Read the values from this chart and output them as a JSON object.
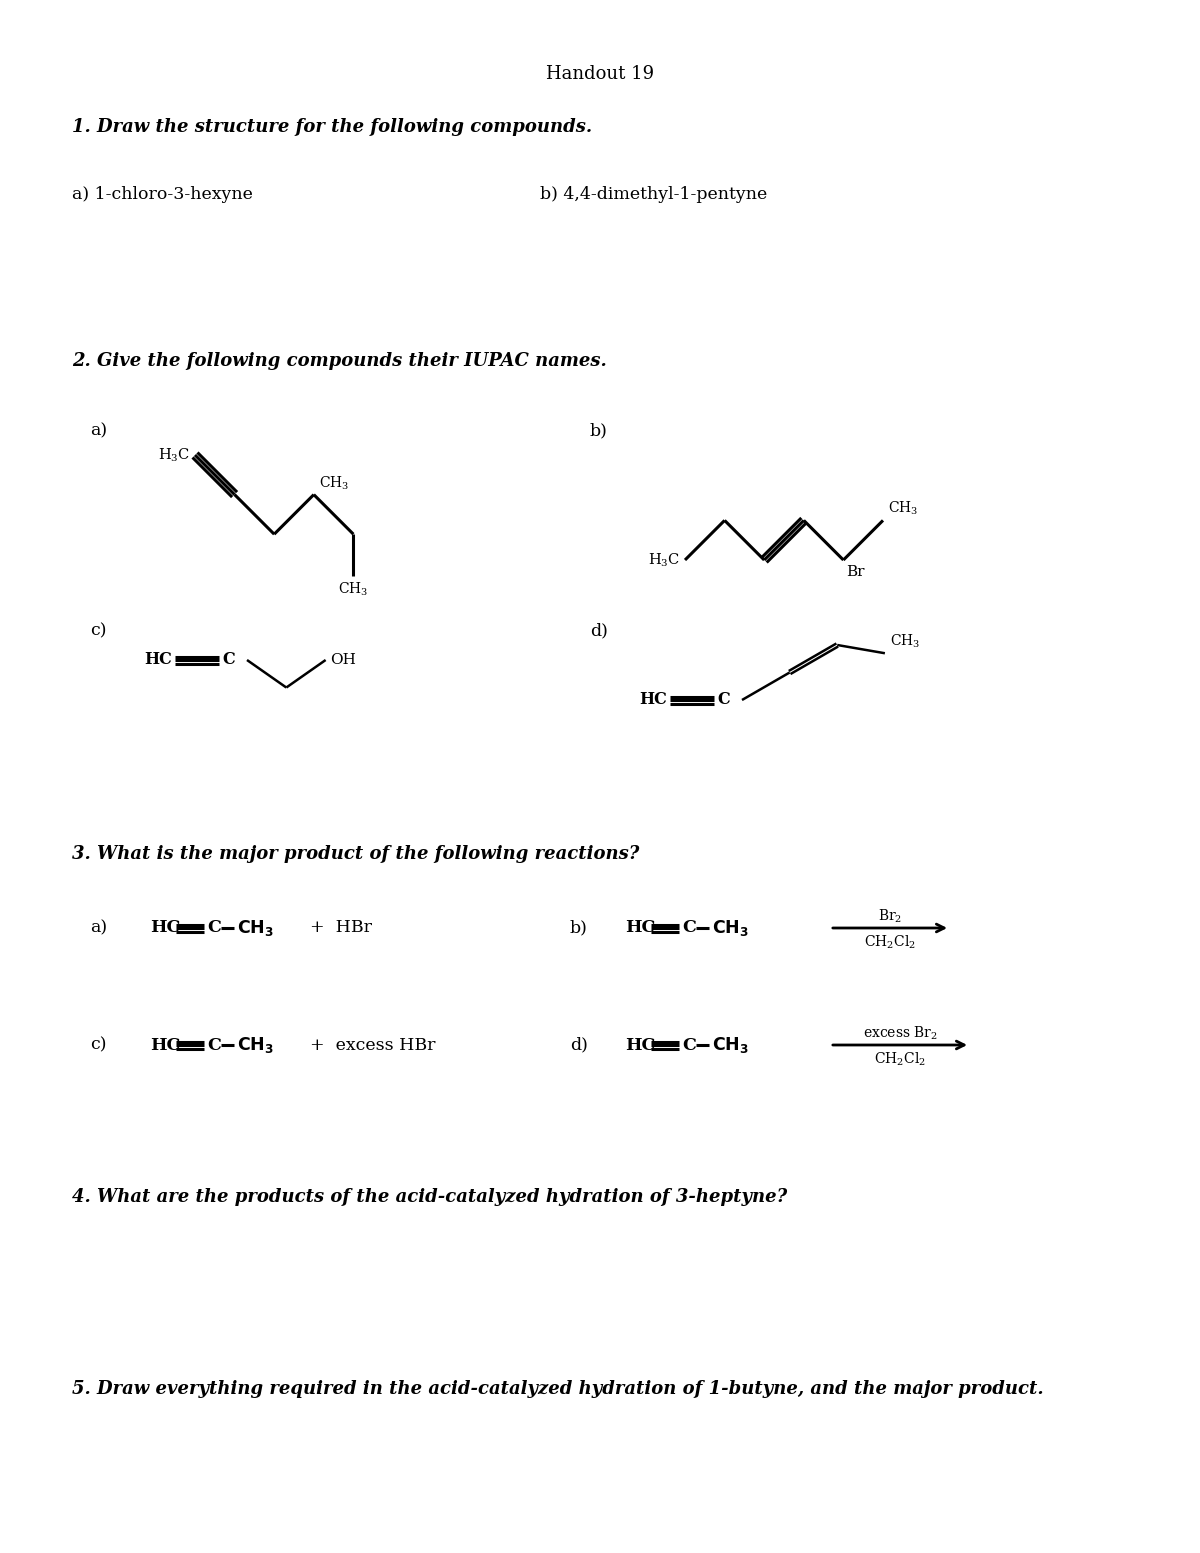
{
  "title": "Handout 19",
  "bg": "#ffffff",
  "fg": "#000000",
  "q1": "1. Draw the structure for the following compounds.",
  "q1a": "a) 1-chloro-3-hexyne",
  "q1b": "b) 4,4-dimethyl-1-pentyne",
  "q2": "2. Give the following compounds their IUPAC names.",
  "q3": "3. What is the major product of the following reactions?",
  "q4": "4. What are the products of the acid-catalyzed hydration of 3-heptyne?",
  "q5": "5. Draw everything required in the acid-catalyzed hydration of 1-butyne, and the major product.",
  "q2a_label": "a)",
  "q2b_label": "b)",
  "q2c_label": "c)",
  "q2d_label": "d)",
  "q3a_label": "a)",
  "q3b_label": "b)",
  "q3c_label": "c)",
  "q3d_label": "d)"
}
